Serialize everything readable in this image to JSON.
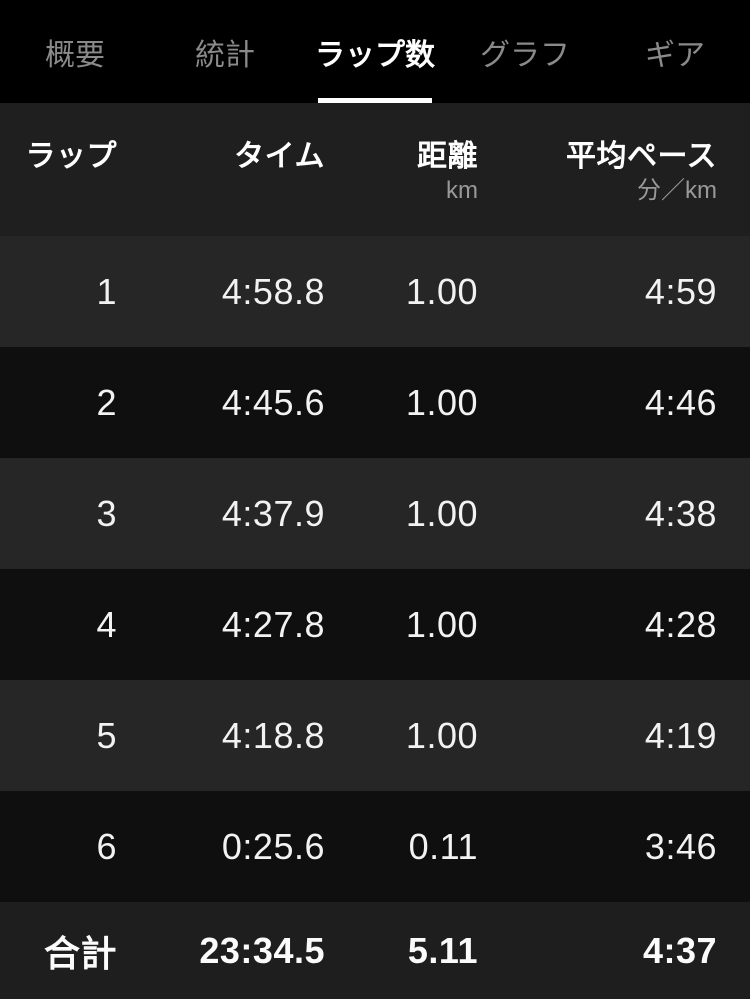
{
  "tabs": [
    {
      "label": "概要",
      "active": false
    },
    {
      "label": "統計",
      "active": false
    },
    {
      "label": "ラップ数",
      "active": true
    },
    {
      "label": "グラフ",
      "active": false
    },
    {
      "label": "ギア",
      "active": false
    }
  ],
  "table": {
    "columns": [
      {
        "title": "ラップ",
        "unit": ""
      },
      {
        "title": "タイム",
        "unit": ""
      },
      {
        "title": "距離",
        "unit": "km"
      },
      {
        "title": "平均ペース",
        "unit": "分／km"
      }
    ],
    "rows": [
      {
        "lap": "1",
        "time": "4:58.8",
        "distance": "1.00",
        "pace": "4:59"
      },
      {
        "lap": "2",
        "time": "4:45.6",
        "distance": "1.00",
        "pace": "4:46"
      },
      {
        "lap": "3",
        "time": "4:37.9",
        "distance": "1.00",
        "pace": "4:38"
      },
      {
        "lap": "4",
        "time": "4:27.8",
        "distance": "1.00",
        "pace": "4:28"
      },
      {
        "lap": "5",
        "time": "4:18.8",
        "distance": "1.00",
        "pace": "4:19"
      },
      {
        "lap": "6",
        "time": "0:25.6",
        "distance": "0.11",
        "pace": "3:46"
      }
    ],
    "total": {
      "lap": "合計",
      "time": "23:34.5",
      "distance": "5.11",
      "pace": "4:37"
    }
  },
  "colors": {
    "tabbar_bg": "#000000",
    "active_tab_text": "#ffffff",
    "inactive_tab_text": "#8a8a8a",
    "active_underline": "#ffffff",
    "header_bg": "#1f1f1f",
    "row_light_bg": "#262626",
    "row_dark_bg": "#0f0f0f",
    "total_row_bg": "#1e1e1e",
    "value_text": "#f2f2f2",
    "unit_text": "#999999"
  }
}
